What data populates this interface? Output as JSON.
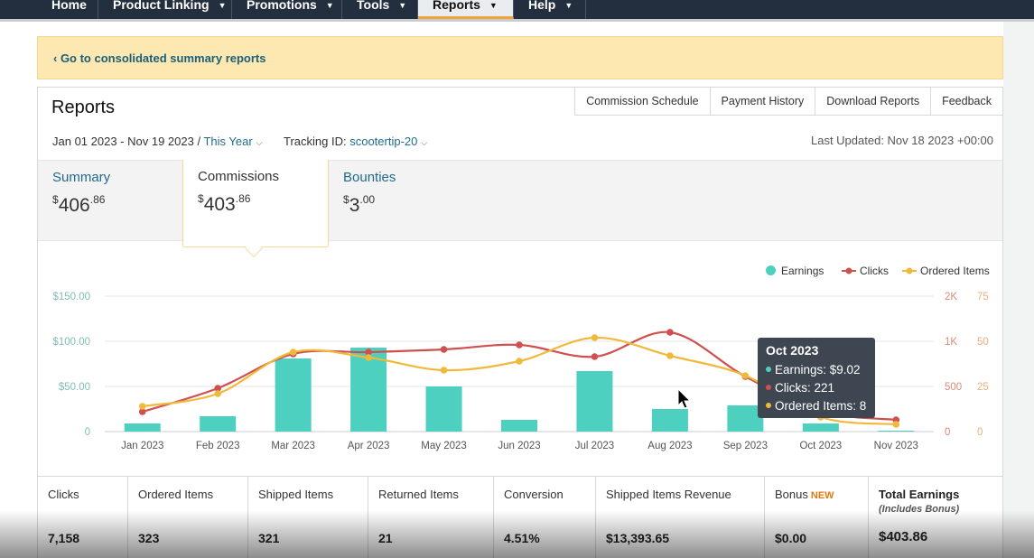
{
  "nav": {
    "items": [
      {
        "label": "Home",
        "dropdown": false
      },
      {
        "label": "Product Linking",
        "dropdown": true
      },
      {
        "label": "Promotions",
        "dropdown": true
      },
      {
        "label": "Tools",
        "dropdown": true
      },
      {
        "label": "Reports",
        "dropdown": true,
        "active": true
      },
      {
        "label": "Help",
        "dropdown": true
      }
    ]
  },
  "banner": {
    "link": "‹ Go to consolidated summary reports"
  },
  "reports": {
    "title": "Reports",
    "tabs": [
      "Commission Schedule",
      "Payment History",
      "Download Reports",
      "Feedback"
    ],
    "date_range": "Jan 01 2023 - Nov 19 2023 /",
    "period": "This Year",
    "tracking_label": "Tracking ID:",
    "tracking_id": "scootertip-20",
    "last_updated": "Last Updated: Nov 18 2023 +00:00"
  },
  "summary": {
    "summary": {
      "label": "Summary",
      "dollar": "$",
      "whole": "406",
      "cents": ".86"
    },
    "commissions": {
      "label": "Commissions",
      "dollar": "$",
      "whole": "403",
      "cents": ".86"
    },
    "bounties": {
      "label": "Bounties",
      "dollar": "$",
      "whole": "3",
      "cents": ".00"
    }
  },
  "legend": {
    "earnings": "Earnings",
    "clicks": "Clicks",
    "ordered": "Ordered Items"
  },
  "colors": {
    "earnings": "#4dd0c0",
    "clicks": "#d0504f",
    "ordered": "#f0b93a",
    "link": "#1f6b8c",
    "nav": "#232f3e"
  },
  "chart_data": {
    "type": "bar",
    "categories": [
      "Jan 2023",
      "Feb 2023",
      "Mar 2023",
      "Apr 2023",
      "May 2023",
      "Jun 2023",
      "Jul 2023",
      "Aug 2023",
      "Sep 2023",
      "Oct 2023",
      "Nov 2023"
    ],
    "y_left_ticks": [
      "$150.00",
      "$100.00",
      "$50.00",
      "0"
    ],
    "y_left_range": [
      0,
      150
    ],
    "y_right1_ticks": [
      "2K",
      "1K",
      "500",
      "0"
    ],
    "y_right1_range": [
      0,
      1500
    ],
    "y_right2_ticks": [
      "75",
      "50",
      "25",
      "0"
    ],
    "y_right2_range": [
      0,
      75
    ],
    "series": [
      {
        "name": "Earnings",
        "axis": "left",
        "type": "bar",
        "values": [
          9,
          17,
          81,
          93,
          50,
          13,
          67,
          25,
          29,
          9.02,
          1
        ]
      },
      {
        "name": "Clicks",
        "axis": "right1",
        "type": "line",
        "values": [
          220,
          480,
          860,
          880,
          910,
          960,
          830,
          1100,
          610,
          221,
          130
        ]
      },
      {
        "name": "Ordered Items",
        "axis": "right2",
        "type": "line",
        "values": [
          14,
          21,
          44,
          41,
          34,
          39,
          52,
          42,
          31,
          8,
          4
        ]
      }
    ]
  },
  "tooltip": {
    "title": "Oct 2023",
    "earnings": "Earnings: $9.02",
    "clicks": "Clicks: 221",
    "ordered": "Ordered Items: 8"
  },
  "metrics": [
    {
      "label": "Clicks",
      "value": "7,158"
    },
    {
      "label": "Ordered Items",
      "value": "323"
    },
    {
      "label": "Shipped Items",
      "value": "321"
    },
    {
      "label": "Returned Items",
      "value": "21"
    },
    {
      "label": "Conversion",
      "value": "4.51%"
    },
    {
      "label": "Shipped Items Revenue",
      "value": "$13,393.65"
    },
    {
      "label": "Bonus",
      "badge": "NEW",
      "value": "$0.00"
    },
    {
      "label": "Total Earnings",
      "sub": "(Includes Bonus)",
      "value": "$403.86"
    }
  ]
}
